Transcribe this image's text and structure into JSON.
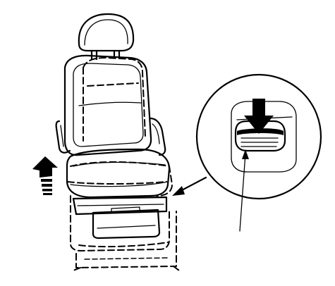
{
  "figure": {
    "kind": "seat-adjustment-illustration",
    "colors": {
      "ink": "#000000",
      "background": "#ffffff"
    },
    "icons": [
      "seat-icon",
      "headrest-icon",
      "lift-arrow-icon",
      "release-lever-icon",
      "press-arrow-icon"
    ]
  }
}
